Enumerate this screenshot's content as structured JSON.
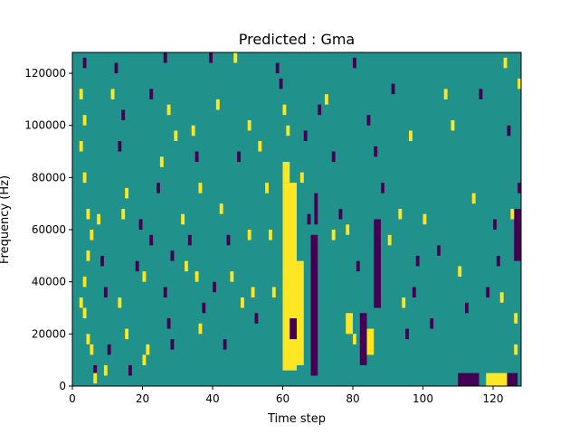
{
  "chart_data": {
    "type": "heatmap",
    "title": "Predicted : Gma",
    "xlabel": "Time step",
    "ylabel": "Frequency (Hz)",
    "xlim": [
      0,
      128
    ],
    "ylim": [
      0,
      128000
    ],
    "x_ticks": [
      0,
      20,
      40,
      60,
      80,
      100,
      120
    ],
    "x_tick_labels": [
      "0",
      "20",
      "40",
      "60",
      "80",
      "100",
      "120"
    ],
    "y_ticks": [
      0,
      20000,
      40000,
      60000,
      80000,
      100000,
      120000
    ],
    "y_tick_labels": [
      "0",
      "20000",
      "40000",
      "60000",
      "80000",
      "100000",
      "120000"
    ],
    "colormap": "viridis",
    "levels": [
      {
        "value": -1,
        "color": "#440154"
      },
      {
        "value": 0,
        "color": "#21918c"
      },
      {
        "value": 1,
        "color": "#fde725"
      }
    ],
    "background_value": 0,
    "n_time_steps": 128,
    "n_freq_bins": 64,
    "cells_note_omitted": true,
    "blocks": [
      {
        "x0": 60,
        "x1": 64,
        "y0": 6000,
        "y1": 78000,
        "value": 1
      },
      {
        "x0": 60,
        "x1": 62,
        "y0": 78000,
        "y1": 86000,
        "value": 1
      },
      {
        "x0": 62,
        "x1": 64,
        "y0": 18000,
        "y1": 26000,
        "value": -1
      },
      {
        "x0": 68,
        "x1": 70,
        "y0": 4000,
        "y1": 58000,
        "value": -1
      },
      {
        "x0": 69,
        "x1": 70,
        "y0": 62000,
        "y1": 74000,
        "value": -1
      },
      {
        "x0": 64,
        "x1": 66,
        "y0": 8000,
        "y1": 48000,
        "value": 1
      },
      {
        "x0": 110,
        "x1": 116,
        "y0": 0,
        "y1": 5000,
        "value": -1
      },
      {
        "x0": 118,
        "x1": 124,
        "y0": 0,
        "y1": 5000,
        "value": 1
      },
      {
        "x0": 124,
        "x1": 127,
        "y0": 0,
        "y1": 5000,
        "value": -1
      },
      {
        "x0": 82,
        "x1": 84,
        "y0": 8000,
        "y1": 28000,
        "value": -1
      },
      {
        "x0": 84,
        "x1": 86,
        "y0": 12000,
        "y1": 22000,
        "value": 1
      },
      {
        "x0": 78,
        "x1": 80,
        "y0": 20000,
        "y1": 28000,
        "value": 1
      },
      {
        "x0": 86,
        "x1": 88,
        "y0": 30000,
        "y1": 64000,
        "value": -1
      },
      {
        "x0": 126,
        "x1": 128,
        "y0": 48000,
        "y1": 68000,
        "value": -1
      }
    ],
    "cells": [
      {
        "x": 3,
        "y": 122000,
        "value": -1
      },
      {
        "x": 2,
        "y": 110000,
        "value": 1
      },
      {
        "x": 3,
        "y": 100000,
        "value": 1
      },
      {
        "x": 2,
        "y": 90000,
        "value": 1
      },
      {
        "x": 3,
        "y": 78000,
        "value": 1
      },
      {
        "x": 4,
        "y": 64000,
        "value": 1
      },
      {
        "x": 5,
        "y": 56000,
        "value": 1
      },
      {
        "x": 4,
        "y": 48000,
        "value": 1
      },
      {
        "x": 3,
        "y": 38000,
        "value": 1
      },
      {
        "x": 2,
        "y": 30000,
        "value": 1
      },
      {
        "x": 3,
        "y": 26000,
        "value": 1
      },
      {
        "x": 4,
        "y": 16000,
        "value": 1
      },
      {
        "x": 5,
        "y": 12000,
        "value": 1
      },
      {
        "x": 6,
        "y": 4000,
        "value": -1
      },
      {
        "x": 6,
        "y": 1000,
        "value": 1
      },
      {
        "x": 7,
        "y": 62000,
        "value": 1
      },
      {
        "x": 8,
        "y": 46000,
        "value": -1
      },
      {
        "x": 9,
        "y": 34000,
        "value": -1
      },
      {
        "x": 9,
        "y": 4000,
        "value": 1
      },
      {
        "x": 10,
        "y": 12000,
        "value": -1
      },
      {
        "x": 12,
        "y": 120000,
        "value": -1
      },
      {
        "x": 11,
        "y": 110000,
        "value": 1
      },
      {
        "x": 14,
        "y": 102000,
        "value": -1
      },
      {
        "x": 13,
        "y": 90000,
        "value": -1
      },
      {
        "x": 15,
        "y": 72000,
        "value": 1
      },
      {
        "x": 14,
        "y": 64000,
        "value": 1
      },
      {
        "x": 13,
        "y": 30000,
        "value": 1
      },
      {
        "x": 15,
        "y": 18000,
        "value": 1
      },
      {
        "x": 16,
        "y": 4000,
        "value": -1
      },
      {
        "x": 18,
        "y": 44000,
        "value": -1
      },
      {
        "x": 19,
        "y": 60000,
        "value": -1
      },
      {
        "x": 20,
        "y": 40000,
        "value": 1
      },
      {
        "x": 21,
        "y": 12000,
        "value": 1
      },
      {
        "x": 20,
        "y": 8000,
        "value": 1
      },
      {
        "x": 22,
        "y": 110000,
        "value": -1
      },
      {
        "x": 22,
        "y": 54000,
        "value": -1
      },
      {
        "x": 24,
        "y": 74000,
        "value": -1
      },
      {
        "x": 25,
        "y": 84000,
        "value": 1
      },
      {
        "x": 26,
        "y": 124000,
        "value": -1
      },
      {
        "x": 27,
        "y": 104000,
        "value": 1
      },
      {
        "x": 28,
        "y": 48000,
        "value": -1
      },
      {
        "x": 26,
        "y": 34000,
        "value": -1
      },
      {
        "x": 27,
        "y": 22000,
        "value": -1
      },
      {
        "x": 28,
        "y": 14000,
        "value": -1
      },
      {
        "x": 29,
        "y": 94000,
        "value": 1
      },
      {
        "x": 31,
        "y": 62000,
        "value": 1
      },
      {
        "x": 32,
        "y": 44000,
        "value": 1
      },
      {
        "x": 33,
        "y": 54000,
        "value": -1
      },
      {
        "x": 34,
        "y": 96000,
        "value": 1
      },
      {
        "x": 35,
        "y": 86000,
        "value": -1
      },
      {
        "x": 36,
        "y": 74000,
        "value": 1
      },
      {
        "x": 35,
        "y": 40000,
        "value": 1
      },
      {
        "x": 37,
        "y": 28000,
        "value": -1
      },
      {
        "x": 36,
        "y": 20000,
        "value": 1
      },
      {
        "x": 39,
        "y": 124000,
        "value": -1
      },
      {
        "x": 40,
        "y": 36000,
        "value": -1
      },
      {
        "x": 41,
        "y": 106000,
        "value": 1
      },
      {
        "x": 42,
        "y": 66000,
        "value": 1
      },
      {
        "x": 43,
        "y": 14000,
        "value": -1
      },
      {
        "x": 44,
        "y": 54000,
        "value": -1
      },
      {
        "x": 45,
        "y": 40000,
        "value": 1
      },
      {
        "x": 46,
        "y": 124000,
        "value": 1
      },
      {
        "x": 47,
        "y": 86000,
        "value": -1
      },
      {
        "x": 48,
        "y": 30000,
        "value": 1
      },
      {
        "x": 50,
        "y": 98000,
        "value": 1
      },
      {
        "x": 50,
        "y": 56000,
        "value": 1
      },
      {
        "x": 51,
        "y": 34000,
        "value": 1
      },
      {
        "x": 52,
        "y": 24000,
        "value": -1
      },
      {
        "x": 53,
        "y": 90000,
        "value": 1
      },
      {
        "x": 55,
        "y": 74000,
        "value": 1
      },
      {
        "x": 56,
        "y": 56000,
        "value": 1
      },
      {
        "x": 57,
        "y": 34000,
        "value": 1
      },
      {
        "x": 58,
        "y": 120000,
        "value": -1
      },
      {
        "x": 59,
        "y": 114000,
        "value": -1
      },
      {
        "x": 60,
        "y": 104000,
        "value": 1
      },
      {
        "x": 61,
        "y": 96000,
        "value": 1
      },
      {
        "x": 66,
        "y": 94000,
        "value": -1
      },
      {
        "x": 65,
        "y": 78000,
        "value": 1
      },
      {
        "x": 67,
        "y": 62000,
        "value": -1
      },
      {
        "x": 70,
        "y": 104000,
        "value": -1
      },
      {
        "x": 72,
        "y": 108000,
        "value": 1
      },
      {
        "x": 74,
        "y": 86000,
        "value": -1
      },
      {
        "x": 74,
        "y": 56000,
        "value": 1
      },
      {
        "x": 76,
        "y": 64000,
        "value": -1
      },
      {
        "x": 78,
        "y": 58000,
        "value": 1
      },
      {
        "x": 80,
        "y": 122000,
        "value": -1
      },
      {
        "x": 81,
        "y": 44000,
        "value": -1
      },
      {
        "x": 80,
        "y": 16000,
        "value": 1
      },
      {
        "x": 84,
        "y": 100000,
        "value": -1
      },
      {
        "x": 86,
        "y": 88000,
        "value": -1
      },
      {
        "x": 88,
        "y": 74000,
        "value": -1
      },
      {
        "x": 90,
        "y": 54000,
        "value": 1
      },
      {
        "x": 91,
        "y": 112000,
        "value": -1
      },
      {
        "x": 93,
        "y": 64000,
        "value": 1
      },
      {
        "x": 94,
        "y": 30000,
        "value": 1
      },
      {
        "x": 95,
        "y": 18000,
        "value": -1
      },
      {
        "x": 96,
        "y": 94000,
        "value": 1
      },
      {
        "x": 97,
        "y": 34000,
        "value": -1
      },
      {
        "x": 98,
        "y": 46000,
        "value": -1
      },
      {
        "x": 100,
        "y": 62000,
        "value": 1
      },
      {
        "x": 102,
        "y": 22000,
        "value": -1
      },
      {
        "x": 104,
        "y": 50000,
        "value": -1
      },
      {
        "x": 106,
        "y": 110000,
        "value": 1
      },
      {
        "x": 108,
        "y": 98000,
        "value": 1
      },
      {
        "x": 110,
        "y": 42000,
        "value": 1
      },
      {
        "x": 112,
        "y": 28000,
        "value": -1
      },
      {
        "x": 114,
        "y": 70000,
        "value": 1
      },
      {
        "x": 116,
        "y": 110000,
        "value": -1
      },
      {
        "x": 118,
        "y": 34000,
        "value": -1
      },
      {
        "x": 120,
        "y": 60000,
        "value": -1
      },
      {
        "x": 121,
        "y": 46000,
        "value": -1
      },
      {
        "x": 122,
        "y": 32000,
        "value": 1
      },
      {
        "x": 123,
        "y": 122000,
        "value": 1
      },
      {
        "x": 124,
        "y": 96000,
        "value": -1
      },
      {
        "x": 125,
        "y": 64000,
        "value": 1
      },
      {
        "x": 126,
        "y": 24000,
        "value": 1
      },
      {
        "x": 126,
        "y": 12000,
        "value": 1
      },
      {
        "x": 127,
        "y": 114000,
        "value": 1
      },
      {
        "x": 127,
        "y": 74000,
        "value": -1
      }
    ]
  }
}
